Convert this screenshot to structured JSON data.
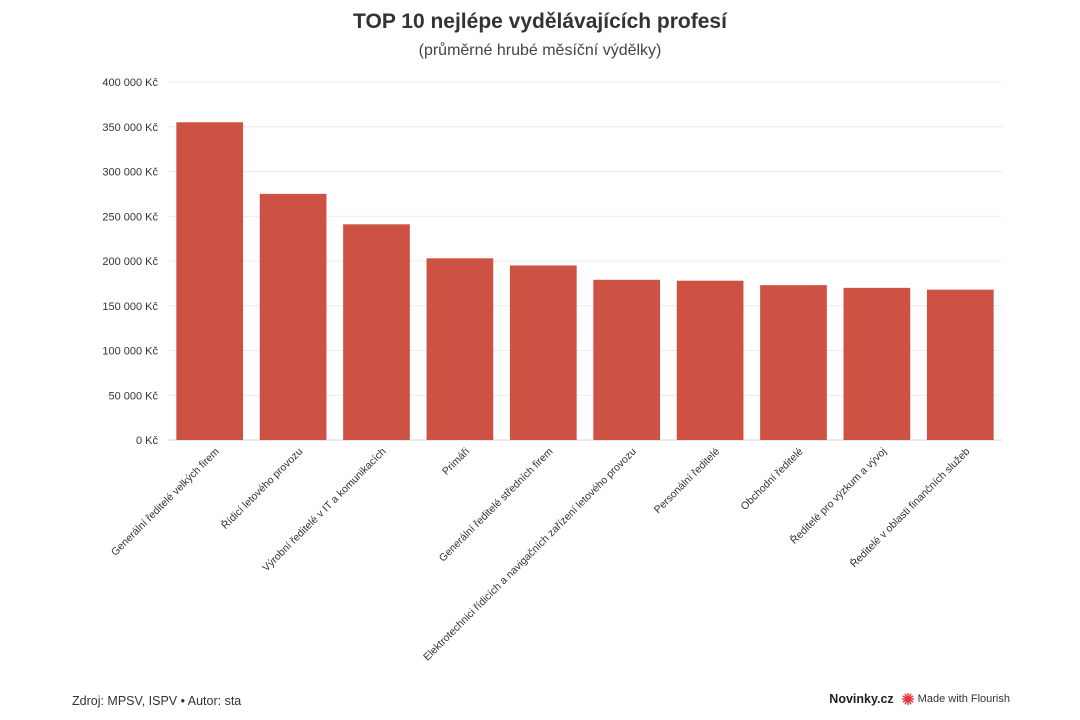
{
  "header": {
    "title": "TOP 10 nejlépe vydělávajících profesí",
    "subtitle": "(průměrné hrubé měsíční výdělky)"
  },
  "chart_data": {
    "type": "bar",
    "title": "TOP 10 nejlépe vydělávajících profesí",
    "subtitle": "(průměrné hrubé měsíční výdělky)",
    "xlabel": "",
    "ylabel": "",
    "ylim": [
      0,
      400000
    ],
    "yticks": [
      0,
      50000,
      100000,
      150000,
      200000,
      250000,
      300000,
      350000,
      400000
    ],
    "ytick_labels": [
      "0 Kč",
      "50 000 Kč",
      "100 000 Kč",
      "150 000 Kč",
      "200 000 Kč",
      "250 000 Kč",
      "300 000 Kč",
      "350 000 Kč",
      "400 000 Kč"
    ],
    "grid": true,
    "bar_color": "#cd5243",
    "categories": [
      "Generální ředitelé velkých firem",
      "Řídicí letového provozu",
      "Výrobní ředitelé v IT a komunikacích",
      "Primáři",
      "Generální ředitelé středních firem",
      "Elektrotechnici řídicích a navigačních zařízení letového provozu",
      "Personální ředitelé",
      "Obchodní ředitelé",
      "Ředitelé pro výzkum a vývoj",
      "Ředitelé v oblasti finančních služeb"
    ],
    "values": [
      355000,
      275000,
      241000,
      203000,
      195000,
      179000,
      178000,
      173000,
      170000,
      168000
    ]
  },
  "footer": {
    "source": "Zdroj: MPSV, ISPV • Autor: sta",
    "brand": "Novinky.cz",
    "flourish": "Made with Flourish",
    "flourish_icon": "flourish-burst-icon",
    "flourish_color": "#e8313a"
  }
}
